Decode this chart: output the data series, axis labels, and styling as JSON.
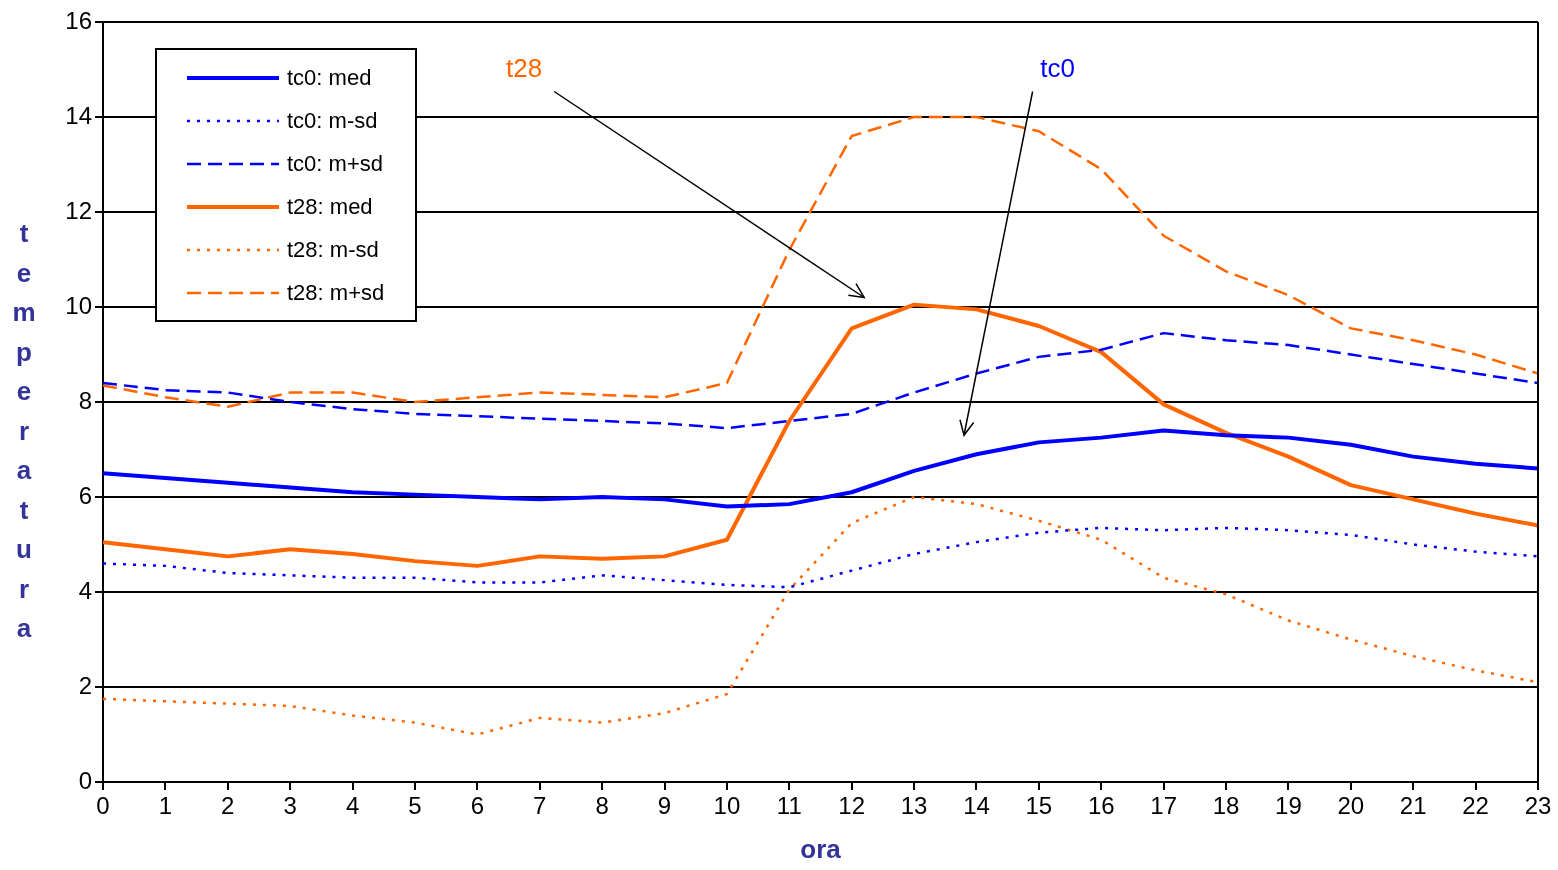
{
  "chart_data": {
    "type": "line",
    "xlabel": "ora",
    "ylabel": "temperatura",
    "x": [
      0,
      1,
      2,
      3,
      4,
      5,
      6,
      7,
      8,
      9,
      10,
      11,
      12,
      13,
      14,
      15,
      16,
      17,
      18,
      19,
      20,
      21,
      22,
      23
    ],
    "xlim": [
      0,
      23
    ],
    "xticks": [
      0,
      1,
      2,
      3,
      4,
      5,
      6,
      7,
      8,
      9,
      10,
      11,
      12,
      13,
      14,
      15,
      16,
      17,
      18,
      19,
      20,
      21,
      22,
      23
    ],
    "ylim": [
      0,
      16
    ],
    "yticks": [
      0,
      2,
      4,
      6,
      8,
      10,
      12,
      14,
      16
    ],
    "grid": "y",
    "legend": "top left",
    "marker": "none",
    "series": [
      {
        "name": "tc0: med",
        "color": "#0000ff",
        "line_style": "solid",
        "values": [
          6.5,
          6.4,
          6.3,
          6.2,
          6.1,
          6.05,
          6.0,
          5.95,
          6.0,
          5.95,
          5.8,
          5.85,
          6.1,
          6.55,
          6.9,
          7.15,
          7.25,
          7.4,
          7.3,
          7.25,
          7.1,
          6.85,
          6.7,
          6.6
        ]
      },
      {
        "name": "tc0: m-sd",
        "color": "#0000ff",
        "line_style": "dotted",
        "values": [
          4.6,
          4.55,
          4.4,
          4.35,
          4.3,
          4.3,
          4.2,
          4.2,
          4.35,
          4.25,
          4.15,
          4.1,
          4.45,
          4.8,
          5.05,
          5.25,
          5.35,
          5.3,
          5.35,
          5.3,
          5.2,
          5.0,
          4.85,
          4.75
        ]
      },
      {
        "name": "tc0: m+sd",
        "color": "#0000ff",
        "line_style": "dashed",
        "values": [
          8.4,
          8.25,
          8.2,
          8.0,
          7.85,
          7.75,
          7.7,
          7.65,
          7.6,
          7.55,
          7.45,
          7.6,
          7.75,
          8.2,
          8.6,
          8.95,
          9.1,
          9.45,
          9.3,
          9.2,
          9.0,
          8.8,
          8.6,
          8.4
        ]
      },
      {
        "name": "t28: med",
        "color": "#ff6600",
        "line_style": "solid",
        "values": [
          5.05,
          4.9,
          4.75,
          4.9,
          4.8,
          4.65,
          4.55,
          4.75,
          4.7,
          4.75,
          5.1,
          7.6,
          9.55,
          10.05,
          9.95,
          9.6,
          9.05,
          7.95,
          7.35,
          6.85,
          6.25,
          5.95,
          5.65,
          5.4
        ]
      },
      {
        "name": "t28: m-sd",
        "color": "#ff6600",
        "line_style": "dotted",
        "values": [
          1.75,
          1.7,
          1.65,
          1.6,
          1.4,
          1.25,
          1.0,
          1.35,
          1.25,
          1.45,
          1.85,
          4.05,
          5.45,
          6.0,
          5.85,
          5.5,
          5.1,
          4.3,
          3.95,
          3.4,
          3.0,
          2.65,
          2.35,
          2.1
        ]
      },
      {
        "name": "t28: m+sd",
        "color": "#ff6600",
        "line_style": "dashed",
        "values": [
          8.35,
          8.1,
          7.9,
          8.2,
          8.2,
          8.0,
          8.1,
          8.2,
          8.15,
          8.1,
          8.4,
          11.2,
          13.6,
          14.0,
          14.0,
          13.7,
          12.9,
          11.5,
          10.75,
          10.25,
          9.55,
          9.3,
          9.0,
          8.6
        ]
      }
    ],
    "annotations": [
      "t28",
      "tc0"
    ]
  }
}
